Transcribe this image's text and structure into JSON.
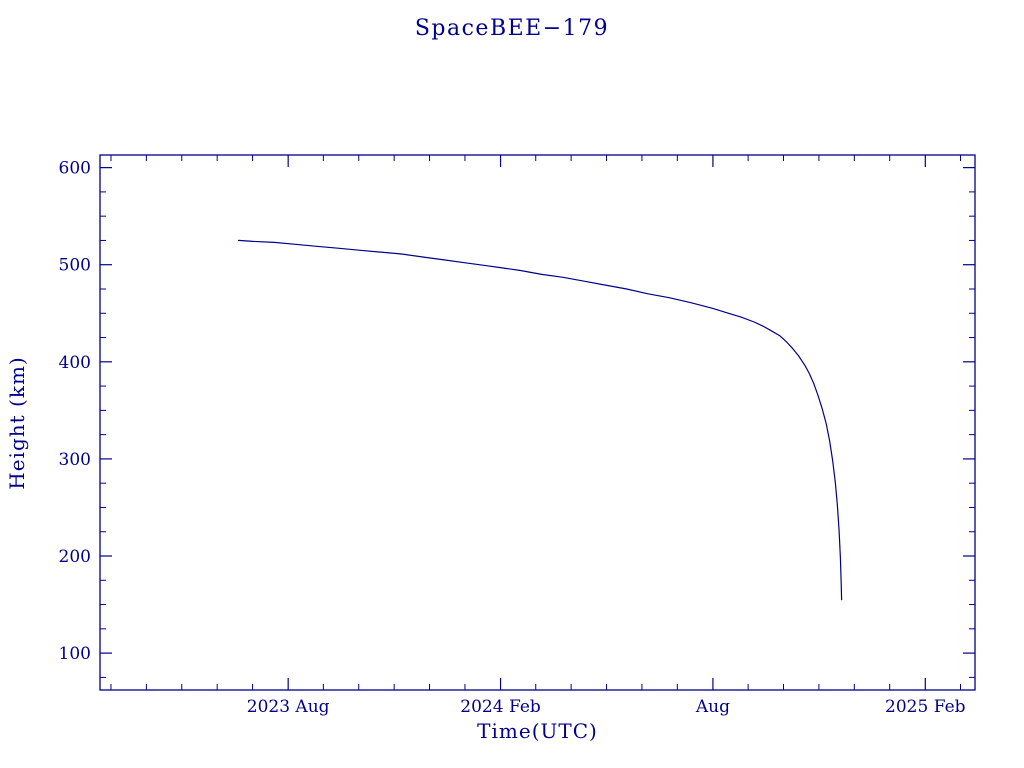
{
  "title": "SpaceBEE−179",
  "colors": {
    "axis": "#00008B",
    "line": "#00008B",
    "text": "#00008B",
    "background": "#FFFFFF"
  },
  "chart_data": {
    "type": "line",
    "title": "SpaceBEE−179",
    "xlabel": "Time(UTC)",
    "ylabel": "Height (km)",
    "xlim": [
      2023.14,
      2025.2
    ],
    "ylim": [
      62,
      613
    ],
    "grid": false,
    "legend": "none",
    "frame": "box-with-inward-ticks",
    "x_major_ticks": [
      {
        "value": 2023.583,
        "label": "2023 Aug"
      },
      {
        "value": 2024.083,
        "label": "2024 Feb"
      },
      {
        "value": 2024.583,
        "label": "Aug"
      },
      {
        "value": 2025.083,
        "label": "2025 Feb"
      }
    ],
    "y_major_ticks": [
      {
        "value": 100,
        "label": "100"
      },
      {
        "value": 200,
        "label": "200"
      },
      {
        "value": 300,
        "label": "300"
      },
      {
        "value": 400,
        "label": "400"
      },
      {
        "value": 500,
        "label": "500"
      },
      {
        "value": 600,
        "label": "600"
      }
    ],
    "x_minor_step_years": 0.0833333,
    "y_minor_step": 25,
    "series": [
      {
        "name": "orbital-height",
        "color": "#00008B",
        "points": [
          [
            2023.466,
            525
          ],
          [
            2023.5,
            524
          ],
          [
            2023.55,
            523
          ],
          [
            2023.6,
            521
          ],
          [
            2023.65,
            519
          ],
          [
            2023.7,
            517
          ],
          [
            2023.75,
            515
          ],
          [
            2023.8,
            513
          ],
          [
            2023.85,
            511
          ],
          [
            2023.9,
            508
          ],
          [
            2023.95,
            505
          ],
          [
            2024.0,
            502
          ],
          [
            2024.05,
            499
          ],
          [
            2024.083,
            497
          ],
          [
            2024.13,
            494
          ],
          [
            2024.18,
            490
          ],
          [
            2024.23,
            487
          ],
          [
            2024.28,
            483
          ],
          [
            2024.33,
            479
          ],
          [
            2024.38,
            475
          ],
          [
            2024.43,
            470
          ],
          [
            2024.48,
            466
          ],
          [
            2024.53,
            461
          ],
          [
            2024.583,
            455
          ],
          [
            2024.62,
            450
          ],
          [
            2024.65,
            446
          ],
          [
            2024.68,
            441
          ],
          [
            2024.7,
            437
          ],
          [
            2024.72,
            432
          ],
          [
            2024.74,
            427
          ],
          [
            2024.755,
            421
          ],
          [
            2024.77,
            414
          ],
          [
            2024.785,
            406
          ],
          [
            2024.8,
            396
          ],
          [
            2024.81,
            388
          ],
          [
            2024.82,
            378
          ],
          [
            2024.83,
            366
          ],
          [
            2024.84,
            352
          ],
          [
            2024.85,
            336
          ],
          [
            2024.858,
            318
          ],
          [
            2024.865,
            298
          ],
          [
            2024.871,
            276
          ],
          [
            2024.876,
            252
          ],
          [
            2024.88,
            226
          ],
          [
            2024.883,
            198
          ],
          [
            2024.885,
            172
          ],
          [
            2024.886,
            155
          ]
        ]
      }
    ]
  }
}
